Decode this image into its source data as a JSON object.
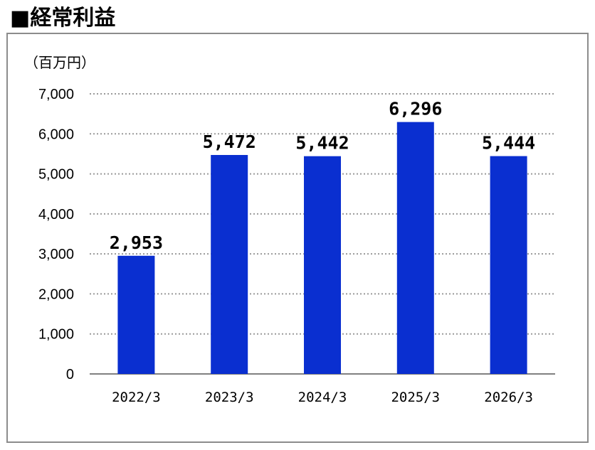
{
  "title": "■経常利益",
  "unit": "（百万円）",
  "colors": {
    "bar": "#0a2fd0",
    "grid": "#9a9a9a",
    "axis": "#808080"
  },
  "chart_data": {
    "type": "bar",
    "categories": [
      "2022/3",
      "2023/3",
      "2024/3",
      "2025/3",
      "2026/3"
    ],
    "values": [
      2953,
      5472,
      5442,
      6296,
      5444
    ],
    "data_labels": [
      "2,953",
      "5,472",
      "5,442",
      "6,296",
      "5,444"
    ],
    "ylabel": "（百万円）",
    "ylim": [
      0,
      7000
    ],
    "yticks": [
      0,
      1000,
      2000,
      3000,
      4000,
      5000,
      6000,
      7000
    ],
    "ytick_labels": [
      "0",
      "1,000",
      "2,000",
      "3,000",
      "4,000",
      "5,000",
      "6,000",
      "7,000"
    ],
    "grid": "horizontal dotted",
    "legend": "none"
  }
}
